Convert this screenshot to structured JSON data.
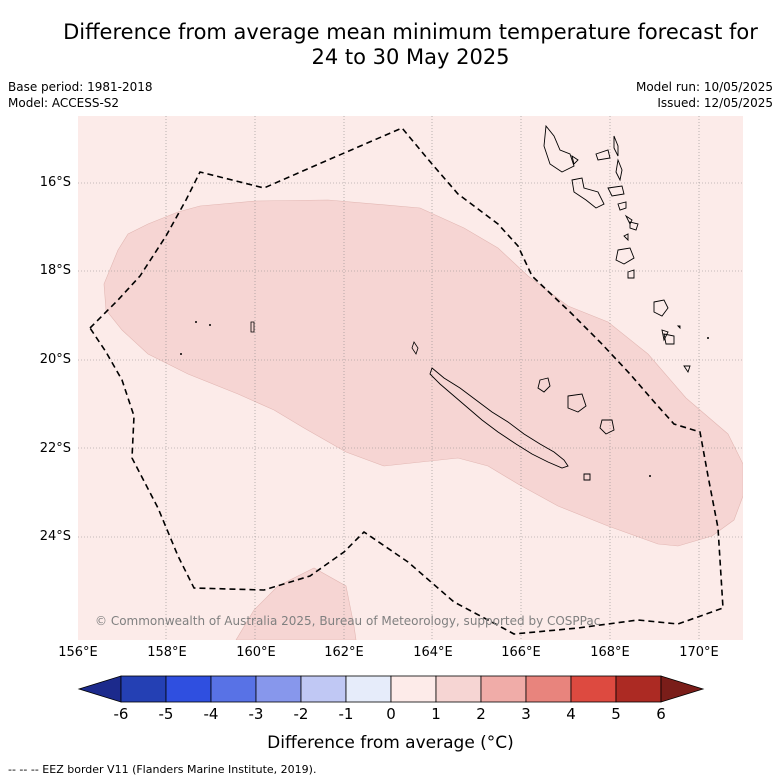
{
  "title_line1": "Difference from average mean minimum temperature forecast for",
  "title_line2": "24 to 30 May 2025",
  "base_period": "Base period: 1981-2018",
  "model": "Model: ACCESS-S2",
  "model_run": "Model run: 10/05/2025",
  "issued": "Issued: 12/05/2025",
  "lat_labels": [
    "16°S",
    "18°S",
    "20°S",
    "22°S",
    "24°S"
  ],
  "lon_labels": [
    "156°E",
    "158°E",
    "160°E",
    "162°E",
    "164°E",
    "166°E",
    "168°E",
    "170°E"
  ],
  "copyright": "© Commonwealth of Australia 2025, Bureau of Meteorology, supported by COSPPac",
  "colorbar": {
    "title": "Difference from average (°C)",
    "ticks": [
      "-6",
      "-5",
      "-4",
      "-3",
      "-2",
      "-1",
      "0",
      "1",
      "2",
      "3",
      "4",
      "5",
      "6"
    ],
    "colors": [
      "#1c2a8c",
      "#2440b4",
      "#2f4fe0",
      "#5872e6",
      "#8797ec",
      "#c0c8f4",
      "#e6ecfa",
      "#fdebe9",
      "#f6d5d3",
      "#f0aca8",
      "#e8847d",
      "#dd4a40",
      "#ac2a23",
      "#7a1d19"
    ]
  },
  "map_fill": {
    "background_anomaly": "#fcebe9",
    "warm_anomaly": "#f6d5d3"
  },
  "footnote": "--  --  -- EEZ border V11 (Flanders Marine Institute, 2019)."
}
